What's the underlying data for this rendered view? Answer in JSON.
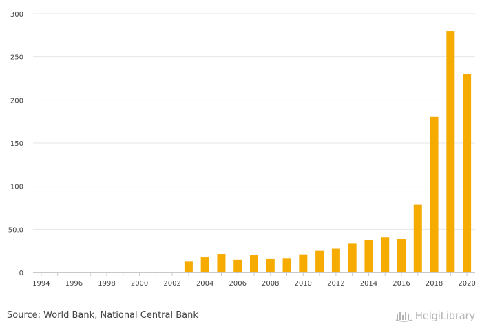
{
  "chart_data": {
    "type": "bar",
    "categories": [
      "1994",
      "1995",
      "1996",
      "1997",
      "1998",
      "1999",
      "2000",
      "2001",
      "2002",
      "2003",
      "2004",
      "2005",
      "2006",
      "2007",
      "2008",
      "2009",
      "2010",
      "2011",
      "2012",
      "2013",
      "2014",
      "2015",
      "2016",
      "2017",
      "2018",
      "2019",
      "2020"
    ],
    "values": [
      null,
      null,
      null,
      null,
      null,
      null,
      null,
      null,
      null,
      12.5,
      17.5,
      21.5,
      14.5,
      20.0,
      16.0,
      16.5,
      21.0,
      25.0,
      27.5,
      34.0,
      37.5,
      40.5,
      38.5,
      78.5,
      180.5,
      280.0,
      230.5
    ],
    "x_tick_labels": [
      "1994",
      "1996",
      "1998",
      "2000",
      "2002",
      "2004",
      "2006",
      "2008",
      "2010",
      "2012",
      "2014",
      "2016",
      "2018",
      "2020"
    ],
    "y_tick_labels": [
      "0",
      "50.0",
      "100",
      "150",
      "200",
      "250",
      "300"
    ],
    "ylim": [
      0,
      300
    ],
    "grid": true,
    "bar_color": "#f5ab00"
  },
  "footer": {
    "source": "Source: World Bank, National Central Bank",
    "logo_text": "HelgiLibrary"
  }
}
